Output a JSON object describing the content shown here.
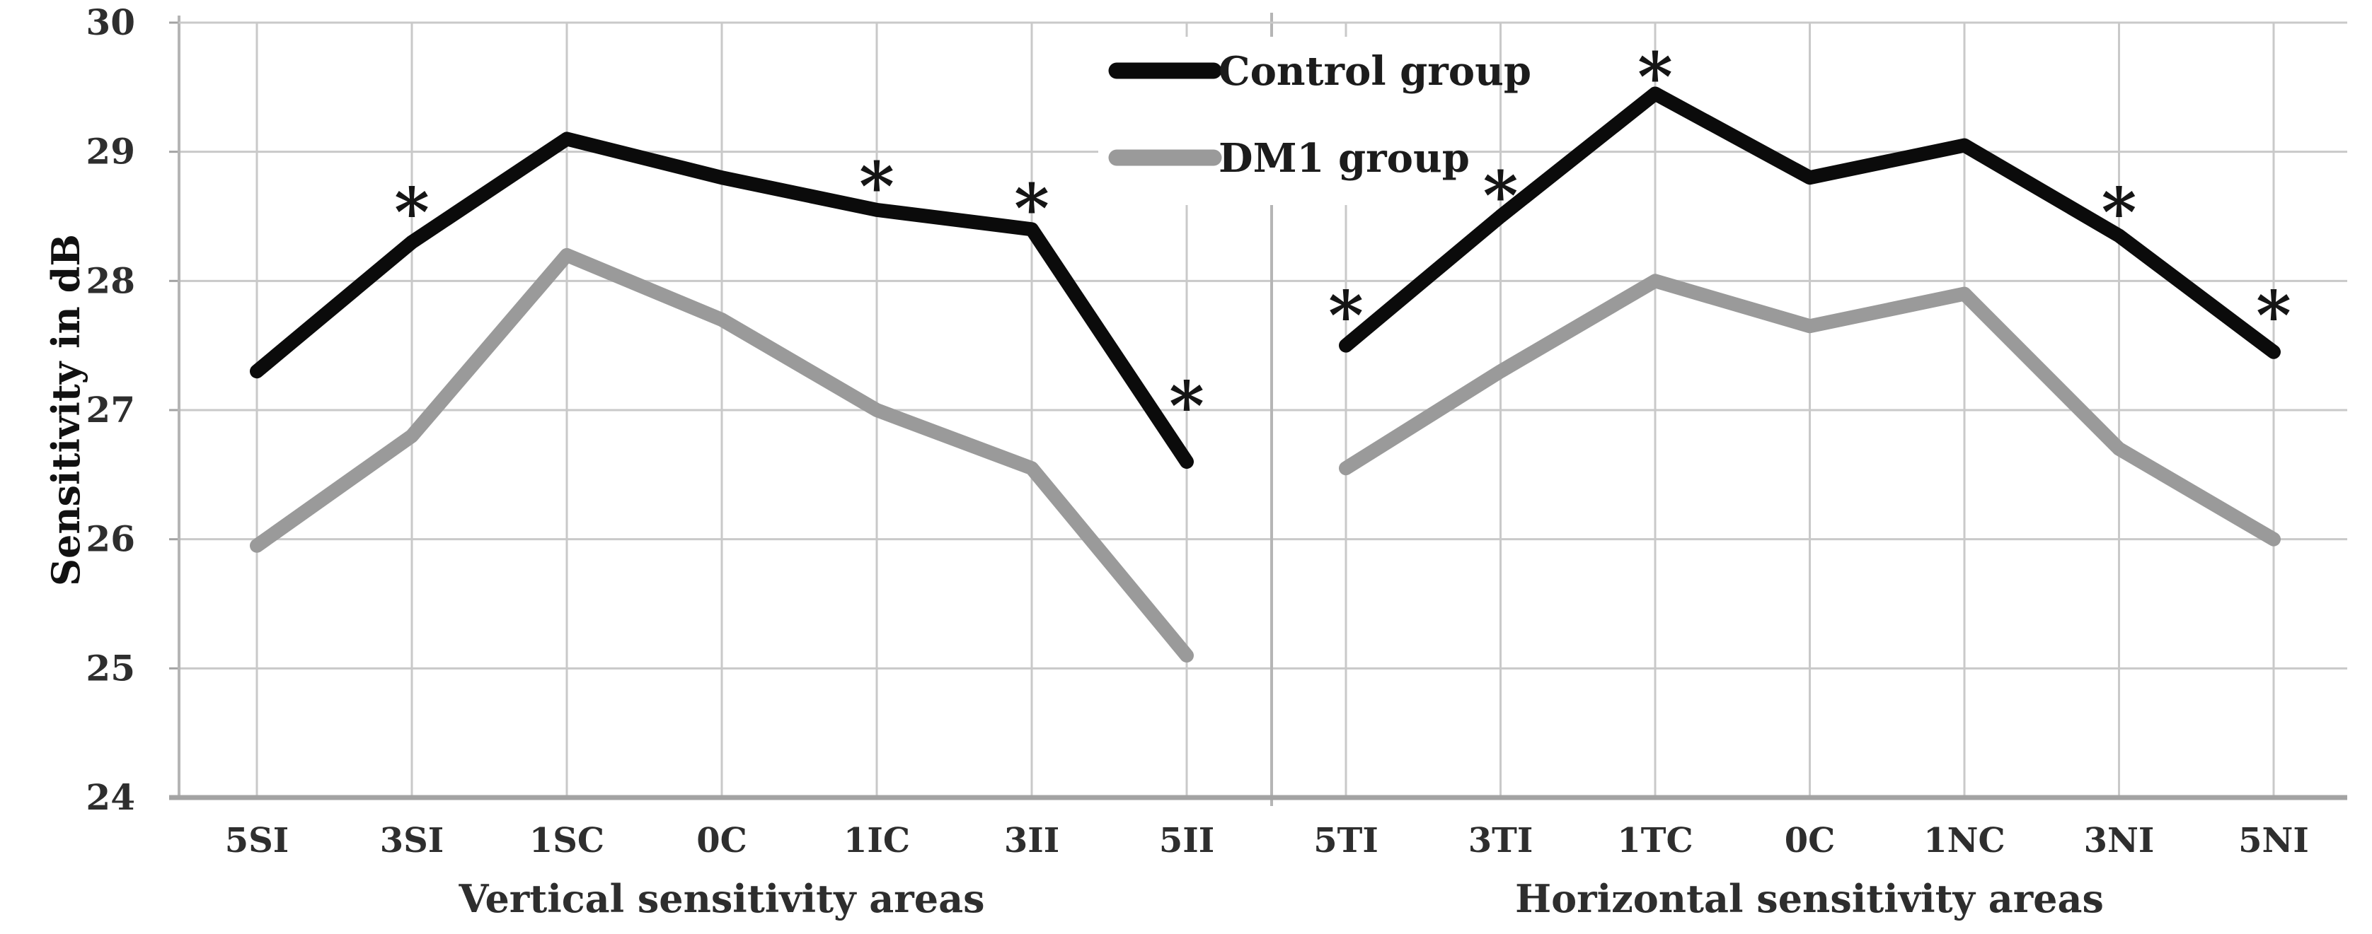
{
  "y_axis": {
    "title": "Sensitivity in dB",
    "min": 24,
    "max": 30,
    "tick_step": 1,
    "tick_labels": [
      "24",
      "25",
      "26",
      "27",
      "28",
      "29",
      "30"
    ]
  },
  "legend": {
    "items": [
      {
        "label": "Control group",
        "color": "#0b0b0b"
      },
      {
        "label": "DM1 group",
        "color": "#9a9a9a"
      }
    ]
  },
  "colors": {
    "control": "#0b0b0b",
    "dm1": "#9a9a9a",
    "gridline": "#c9c9c9",
    "axis": "#a3a3a3",
    "divider": "#b5b5b5",
    "text": "#2e2e2e"
  },
  "chart_data": [
    {
      "type": "line",
      "panel": "left",
      "xlabel": "Vertical sensitivity areas",
      "ylabel": "Sensitivity in dB",
      "ylim": [
        24,
        30
      ],
      "grid": true,
      "categories": [
        "5SI",
        "3SI",
        "1SC",
        "0C",
        "1IC",
        "3II",
        "5II"
      ],
      "series": [
        {
          "name": "Control group",
          "values": [
            27.3,
            28.3,
            29.1,
            28.8,
            28.55,
            28.4,
            26.6
          ]
        },
        {
          "name": "DM1 group",
          "values": [
            25.95,
            26.8,
            28.2,
            27.7,
            27.0,
            26.55,
            25.1
          ]
        }
      ],
      "significance_marks": [
        {
          "category": "3SI",
          "y": 28.65,
          "text": "*"
        },
        {
          "category": "1IC",
          "y": 28.85,
          "text": "*"
        },
        {
          "category": "3II",
          "y": 28.68,
          "text": "*"
        },
        {
          "category": "5II",
          "y": 27.15,
          "text": "*"
        }
      ]
    },
    {
      "type": "line",
      "panel": "right",
      "xlabel": "Horizontal sensitivity areas",
      "ylabel": "Sensitivity in dB",
      "ylim": [
        24,
        30
      ],
      "grid": true,
      "categories": [
        "5TI",
        "3TI",
        "1TC",
        "0C",
        "1NC",
        "3NI",
        "5NI"
      ],
      "series": [
        {
          "name": "Control group",
          "values": [
            27.5,
            28.5,
            29.45,
            28.8,
            29.05,
            28.35,
            27.45
          ]
        },
        {
          "name": "DM1 group",
          "values": [
            26.55,
            27.3,
            28.0,
            27.65,
            27.9,
            26.7,
            26.0
          ]
        }
      ],
      "significance_marks": [
        {
          "category": "5TI",
          "y": 27.85,
          "text": "*"
        },
        {
          "category": "3TI",
          "y": 28.78,
          "text": "*"
        },
        {
          "category": "1TC",
          "y": 29.7,
          "text": "*"
        },
        {
          "category": "3NI",
          "y": 28.65,
          "text": "*"
        },
        {
          "category": "5NI",
          "y": 27.85,
          "text": "*"
        }
      ]
    }
  ]
}
